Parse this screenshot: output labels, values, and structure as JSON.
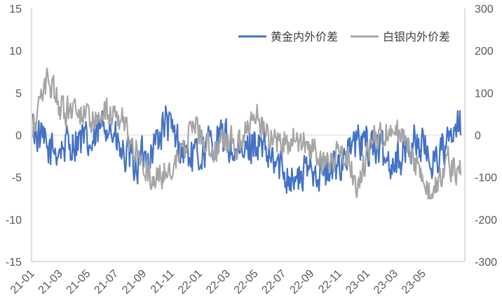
{
  "chart_data": {
    "type": "line",
    "title": "",
    "x_tick_labels": [
      "21-01",
      "21-03",
      "21-05",
      "21-07",
      "21-09",
      "21-11",
      "22-01",
      "22-03",
      "22-05",
      "22-07",
      "22-09",
      "22-11",
      "23-01",
      "23-03",
      "23-05"
    ],
    "x_range": [
      "2021-01",
      "2023-06"
    ],
    "left_axis": {
      "min": -15,
      "max": 15,
      "ticks": [
        -15,
        -10,
        -5,
        0,
        5,
        10,
        15
      ]
    },
    "right_axis": {
      "min": -300,
      "max": 300,
      "ticks": [
        -300,
        -200,
        -100,
        0,
        100,
        200,
        300
      ]
    },
    "grid": "off",
    "legend_position": "top-right",
    "series": [
      {
        "name": "黄金内外价差",
        "axis": "left",
        "color": "#4472C4",
        "approx_monthly_values": [
          1.0,
          -2.0,
          -1.5,
          -0.5,
          -1.5,
          2.0,
          -2.5,
          -3.5,
          -2.0,
          1.5,
          -1.5,
          -3.0,
          -1.0,
          -0.5,
          -3.0,
          -0.5,
          -3.0,
          -4.0,
          -5.5,
          -3.5,
          -5.0,
          -2.5,
          -1.0,
          -1.0,
          -3.0,
          -2.5,
          -0.5,
          -3.0,
          -1.5,
          1.0
        ]
      },
      {
        "name": "白银内外价差",
        "axis": "right",
        "color": "#A5A5A5",
        "approx_monthly_values": [
          20,
          130,
          60,
          55,
          40,
          55,
          35,
          -40,
          -110,
          -90,
          -40,
          20,
          -40,
          -10,
          -30,
          65,
          -5,
          -15,
          -10,
          -40,
          -70,
          -30,
          -120,
          -20,
          20,
          0,
          -70,
          -150,
          -60,
          -90
        ]
      }
    ]
  }
}
